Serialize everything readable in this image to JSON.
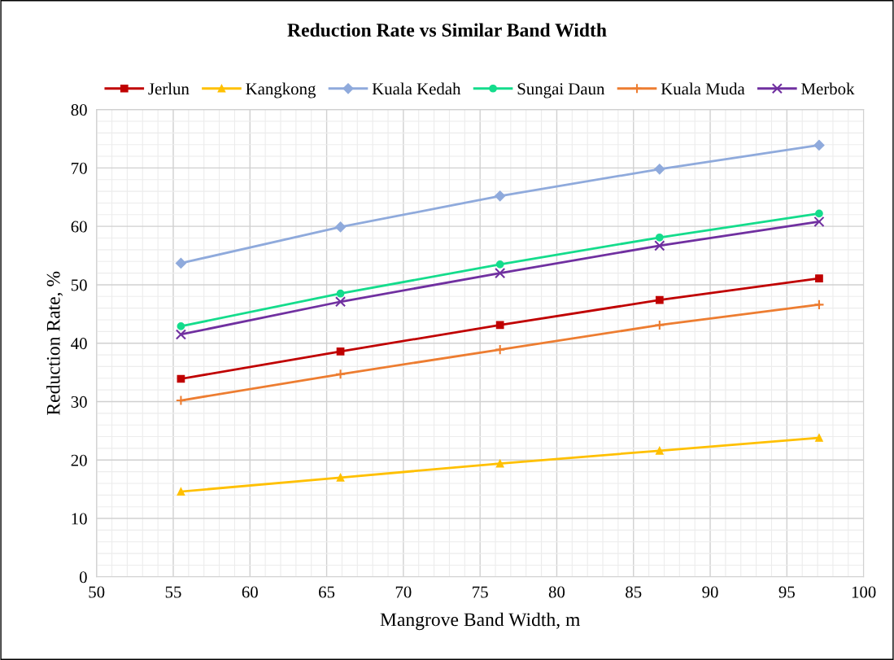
{
  "chart_data": {
    "type": "line",
    "title": "Reduction Rate vs Similar Band Width",
    "xlabel": "Mangrove Band Width, m",
    "ylabel": "Reduction Rate, %",
    "x": [
      55.5,
      65.9,
      76.3,
      86.7,
      97.1
    ],
    "series": [
      {
        "name": "Jerlun",
        "color": "#c00000",
        "marker": "square",
        "values": [
          33.9,
          38.6,
          43.1,
          47.4,
          51.1
        ]
      },
      {
        "name": "Kangkong",
        "color": "#ffc000",
        "marker": "triangle",
        "values": [
          14.6,
          17.0,
          19.4,
          21.6,
          23.8
        ]
      },
      {
        "name": "Kuala Kedah",
        "color": "#8faadc",
        "marker": "diamond",
        "values": [
          53.7,
          59.9,
          65.2,
          69.8,
          73.9
        ]
      },
      {
        "name": "Sungai Daun",
        "color": "#14dc8c",
        "marker": "circle",
        "values": [
          42.9,
          48.5,
          53.5,
          58.1,
          62.2
        ]
      },
      {
        "name": "Kuala Muda",
        "color": "#ed7d31",
        "marker": "plus",
        "values": [
          30.2,
          34.7,
          38.9,
          43.1,
          46.6
        ]
      },
      {
        "name": "Merbok",
        "color": "#7030a0",
        "marker": "cross",
        "values": [
          41.5,
          47.1,
          52.0,
          56.7,
          60.8
        ]
      }
    ],
    "xlim": [
      50,
      100
    ],
    "xticks": [
      50,
      55,
      60,
      65,
      70,
      75,
      80,
      85,
      90,
      95,
      100
    ],
    "ylim": [
      0,
      80
    ],
    "yticks": [
      0,
      10,
      20,
      30,
      40,
      50,
      60,
      70,
      80
    ],
    "grid": true,
    "legend": "top",
    "line_style": "solid"
  }
}
